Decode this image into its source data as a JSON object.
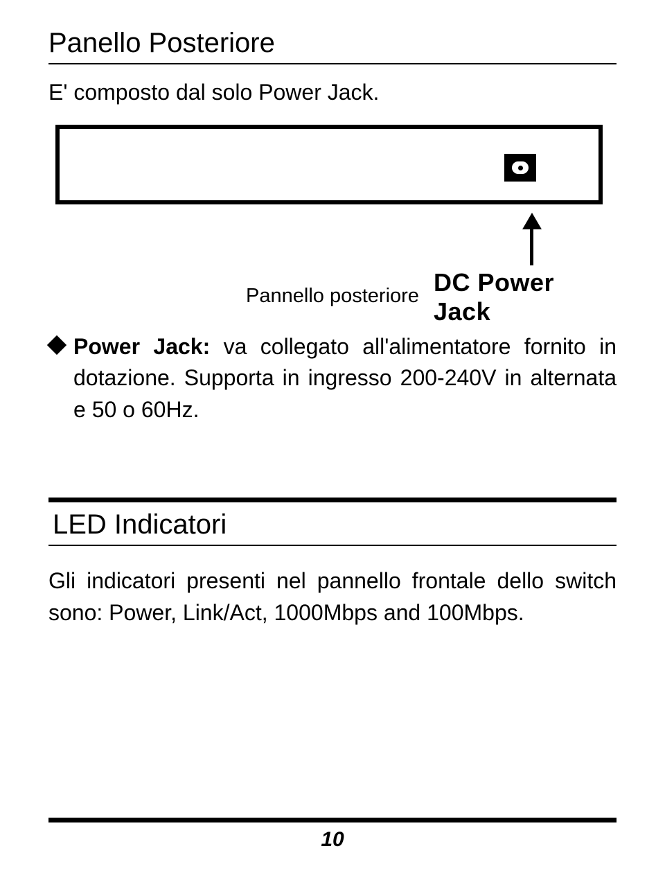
{
  "section1": {
    "title": "Panello Posteriore",
    "intro": "E' composto dal solo  Power Jack.",
    "diagram": {
      "arrow_label": "DC Power Jack",
      "caption": "Pannello posteriore"
    },
    "bullet": {
      "label": "Power Jack:",
      "text_line1": " va collegato all'alimentatore fornito in dotazione. Supporta in ingresso 200-240V in alternata e 50 o 60Hz."
    }
  },
  "section2": {
    "title": "LED Indicatori",
    "para": "Gli indicatori presenti nel pannello frontale dello switch sono: Power,  Link/Act, 1000Mbps and 100Mbps."
  },
  "page_number": "10",
  "colors": {
    "text": "#000000",
    "background": "#ffffff"
  }
}
